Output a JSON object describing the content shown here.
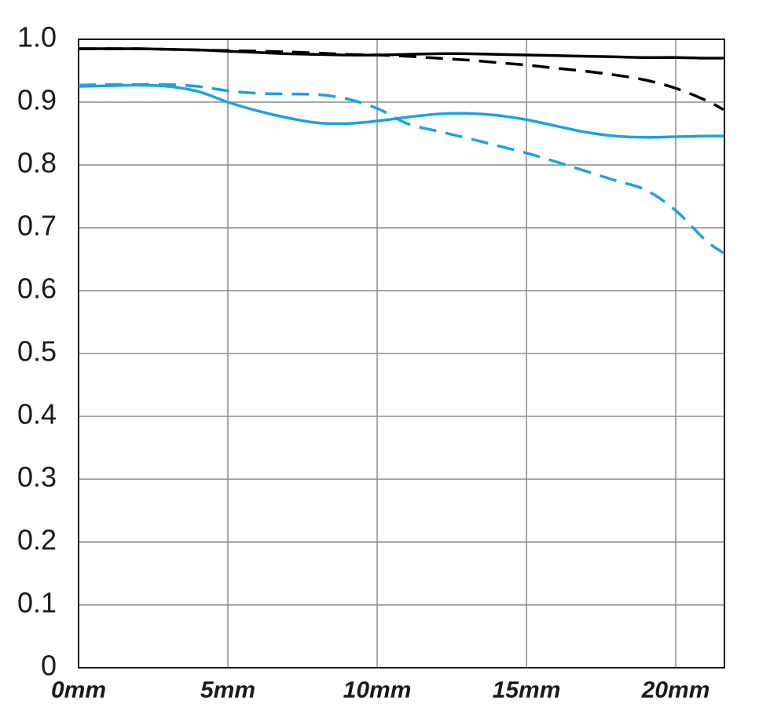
{
  "chart_data": {
    "type": "line",
    "x": [
      0,
      1,
      2,
      3,
      4,
      5,
      6,
      7,
      8,
      9,
      10,
      11,
      12,
      13,
      14,
      15,
      16,
      17,
      18,
      19,
      20,
      21,
      21.6
    ],
    "series": [
      {
        "color": "#000000",
        "dash": false,
        "values": [
          0.985,
          0.985,
          0.985,
          0.984,
          0.983,
          0.981,
          0.979,
          0.977,
          0.976,
          0.975,
          0.975,
          0.976,
          0.977,
          0.977,
          0.976,
          0.975,
          0.974,
          0.973,
          0.972,
          0.971,
          0.971,
          0.97,
          0.97
        ]
      },
      {
        "color": "#000000",
        "dash": true,
        "values": [
          0.985,
          0.985,
          0.985,
          0.984,
          0.983,
          0.982,
          0.981,
          0.98,
          0.978,
          0.976,
          0.975,
          0.973,
          0.97,
          0.967,
          0.963,
          0.959,
          0.954,
          0.949,
          0.943,
          0.935,
          0.922,
          0.903,
          0.888
        ]
      },
      {
        "color": "#1aa3e0",
        "dash": false,
        "values": [
          0.925,
          0.926,
          0.927,
          0.925,
          0.917,
          0.9,
          0.886,
          0.875,
          0.867,
          0.866,
          0.87,
          0.876,
          0.881,
          0.882,
          0.879,
          0.872,
          0.862,
          0.852,
          0.846,
          0.844,
          0.845,
          0.846,
          0.846
        ]
      },
      {
        "color": "#1aa3e0",
        "dash": true,
        "values": [
          0.927,
          0.928,
          0.928,
          0.928,
          0.925,
          0.918,
          0.914,
          0.913,
          0.912,
          0.905,
          0.89,
          0.866,
          0.854,
          0.843,
          0.831,
          0.819,
          0.805,
          0.79,
          0.775,
          0.76,
          0.7275,
          0.68,
          0.66
        ]
      }
    ],
    "xlim": [
      0,
      21.63
    ],
    "ylim": [
      0,
      1
    ],
    "xticks": [
      {
        "value": 0,
        "label": "0mm"
      },
      {
        "value": 5,
        "label": "5mm"
      },
      {
        "value": 10,
        "label": "10mm"
      },
      {
        "value": 15,
        "label": "15mm"
      },
      {
        "value": 20,
        "label": "20mm"
      }
    ],
    "yticks": [
      0,
      0.1,
      0.2,
      0.3,
      0.4,
      0.5,
      0.6,
      0.7,
      0.8,
      0.9,
      {
        "value": 1,
        "label": "1.0"
      }
    ],
    "grid": true
  }
}
